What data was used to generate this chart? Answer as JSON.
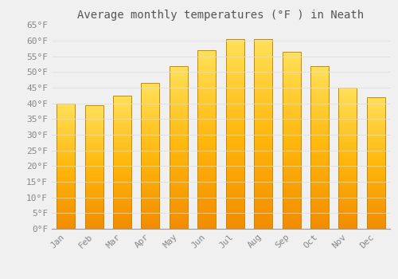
{
  "title": "Average monthly temperatures (°F ) in Neath",
  "months": [
    "Jan",
    "Feb",
    "Mar",
    "Apr",
    "May",
    "Jun",
    "Jul",
    "Aug",
    "Sep",
    "Oct",
    "Nov",
    "Dec"
  ],
  "values": [
    40.0,
    39.5,
    42.5,
    46.5,
    52.0,
    57.0,
    60.5,
    60.5,
    56.5,
    52.0,
    45.0,
    42.0
  ],
  "bar_color_top": "#FFD966",
  "bar_color_mid": "#FFAA00",
  "bar_color_bottom": "#FF8C00",
  "bar_edge_color": "#CC8800",
  "background_color": "#F0F0F0",
  "grid_color": "#DDDDDD",
  "text_color": "#888888",
  "title_color": "#555555",
  "ylim": [
    0,
    65
  ],
  "yticks": [
    0,
    5,
    10,
    15,
    20,
    25,
    30,
    35,
    40,
    45,
    50,
    55,
    60,
    65
  ],
  "title_fontsize": 10,
  "tick_fontsize": 8,
  "font_family": "monospace"
}
